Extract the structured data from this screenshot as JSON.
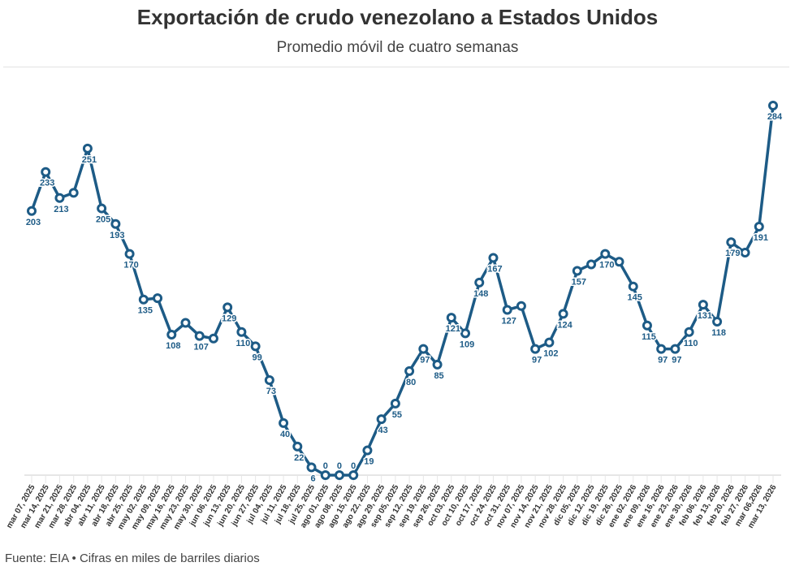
{
  "header": {
    "title": "Exportación de crudo venezolano a Estados Unidos",
    "subtitle": "Promedio móvil de cuatro semanas"
  },
  "footer": "Fuente: EIA • Cifras en miles de barriles diarios",
  "colors": {
    "line": "#1d5b86",
    "marker_fill": "#ffffff",
    "grid": "#e6e6e6"
  },
  "chart_data": {
    "type": "line",
    "title": "Exportación de crudo venezolano a Estados Unidos",
    "subtitle": "Promedio móvil de cuatro semanas",
    "xlabel": "",
    "ylabel": "",
    "ylim": [
      0,
      284
    ],
    "grid": false,
    "categories": [
      "mar 07, 2025",
      "mar 14, 2025",
      "mar 21, 2025",
      "mar 28, 2025",
      "abr 04, 2025",
      "abr 11, 2025",
      "abr 18, 2025",
      "abr 25, 2025",
      "may 02, 2025",
      "may 09, 2025",
      "may 16, 2025",
      "may 23, 2025",
      "may 30, 2025",
      "jun 06, 2025",
      "jun 13, 2025",
      "jun 20, 2025",
      "jun 27, 2025",
      "jul 04, 2025",
      "jul 11, 2025",
      "jul 18, 2025",
      "jul 25, 2025",
      "ago 01, 2025",
      "ago 08, 2025",
      "ago 15, 2025",
      "ago 22, 2025",
      "ago 29, 2025",
      "sep 05, 2025",
      "sep 12, 2025",
      "sep 19, 2025",
      "sep 26, 2025",
      "oct 03, 2025",
      "oct 10, 2025",
      "oct 17, 2025",
      "oct 24, 2025",
      "oct 31, 2025",
      "nov 07, 2025",
      "nov 14, 2025",
      "nov 21, 2025",
      "nov 28, 2025",
      "dic 05, 2025",
      "dic 12, 2025",
      "dic 19, 2025",
      "dic 26, 2025",
      "ene 02, 2026",
      "ene 09, 2026",
      "ene 16, 2026",
      "ene 23, 2026",
      "ene 30, 2026",
      "feb 06, 2026",
      "feb 13, 2026",
      "feb 20, 2026",
      "feb 27, 2026",
      "mar 06,2026",
      "mar 13, 2026"
    ],
    "values": [
      203,
      233,
      213,
      217,
      251,
      205,
      193,
      170,
      135,
      136,
      108,
      117,
      107,
      105,
      129,
      110,
      99,
      73,
      40,
      22,
      6,
      0,
      0,
      0,
      19,
      43,
      55,
      80,
      97,
      85,
      121,
      109,
      148,
      167,
      127,
      130,
      97,
      102,
      124,
      157,
      162,
      170,
      164,
      145,
      115,
      97,
      97,
      110,
      131,
      118,
      179,
      171,
      191,
      284
    ],
    "data_labels": [
      "203",
      "233",
      "213",
      "",
      "251",
      "205",
      "193",
      "170",
      "135",
      "",
      "108",
      "",
      "107",
      "",
      "129",
      "110",
      "99",
      "73",
      "40",
      "22",
      "6",
      "0",
      "0",
      "0",
      "19",
      "43",
      "55",
      "80",
      "97",
      "85",
      "121",
      "109",
      "148",
      "167",
      "127",
      "",
      "97",
      "102",
      "124",
      "157",
      "",
      "170",
      "",
      "145",
      "115",
      "97",
      "97",
      "110",
      "131",
      "118",
      "179",
      "",
      "191",
      "284"
    ]
  }
}
